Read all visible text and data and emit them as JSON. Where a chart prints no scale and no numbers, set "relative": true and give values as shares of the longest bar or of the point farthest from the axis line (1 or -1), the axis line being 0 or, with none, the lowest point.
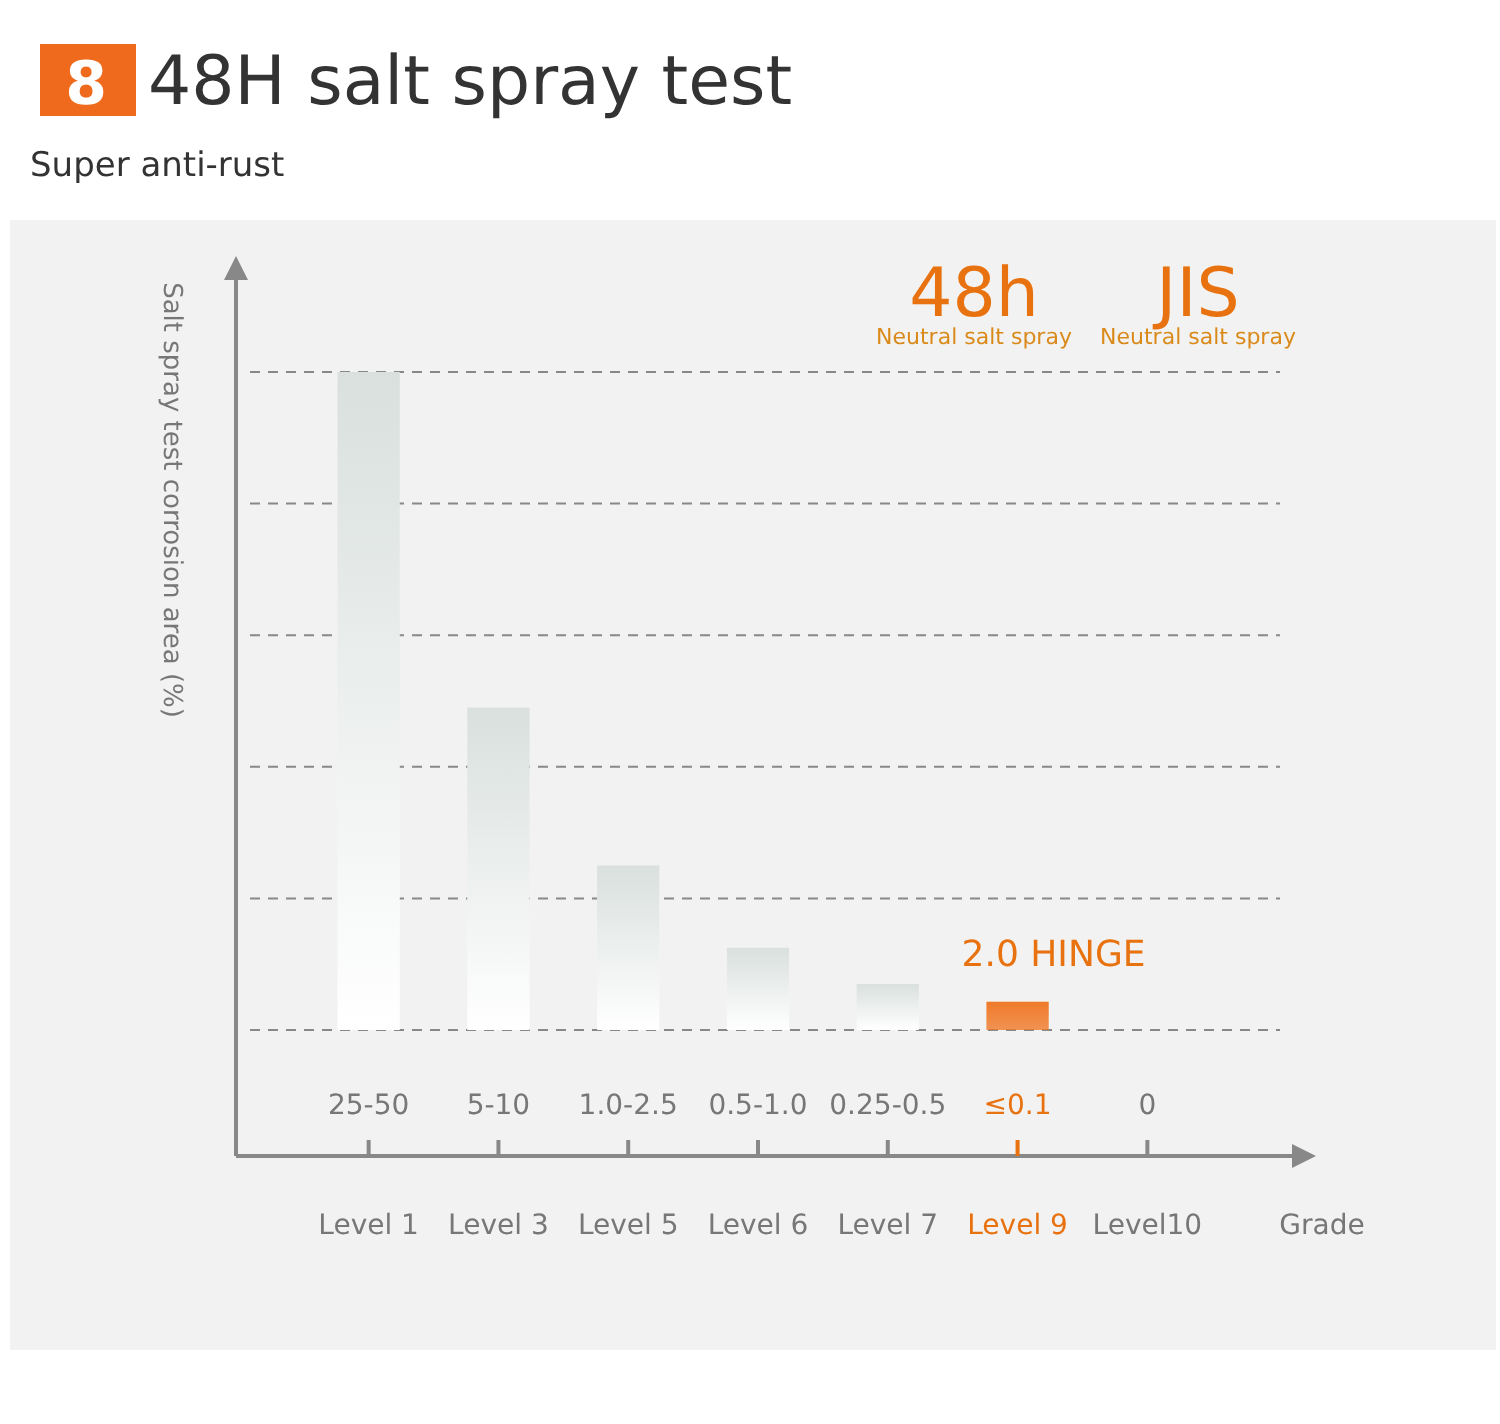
{
  "chart_data": {
    "type": "bar",
    "title": "48H salt spray test",
    "subtitle": "Super anti-rust",
    "ylabel": "Salt spray test corrosion area (%)",
    "xlabel": "Grade",
    "categories": [
      "Level 1",
      "Level 3",
      "Level 5",
      "Level 6",
      "Level 7",
      "Level 9",
      "Level10"
    ],
    "values": [
      1,
      0.49,
      0.25,
      0.125,
      0.07,
      0.043,
      0
    ],
    "colors": [
      "#d9e0de",
      "#d9e0de",
      "#d9e0de",
      "#d9e0de",
      "#d9e0de",
      "#f07a2a",
      "#d9e0de"
    ],
    "relative": true,
    "grid": "y",
    "line_style": "dashed",
    "annotations": [
      "8",
      "48h",
      "Neutral salt spray",
      "JIS",
      "Neutral salt spray",
      {
        "text": "2.0 HINGE",
        "x": "Level 9",
        "y": 0.043
      },
      "25-50",
      "5-10",
      "1.0-2.5",
      "0.5-1.0",
      "0.25-0.5",
      "≤0.1",
      "0"
    ]
  }
}
